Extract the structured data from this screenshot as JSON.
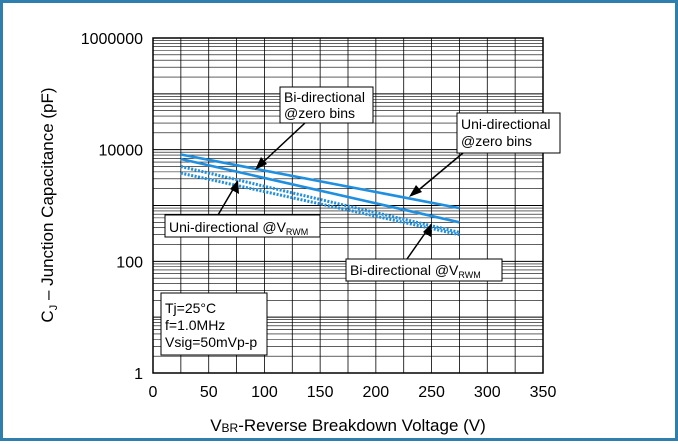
{
  "chart_data": {
    "type": "line",
    "title": "",
    "xlabel": {
      "main": "V",
      "sub": "BR",
      "rest": "-Reverse Breakdown Voltage (V)"
    },
    "ylabel": {
      "main": "C",
      "sub": "J",
      "rest": " – Junction Capacitance (pF)"
    },
    "xlim": [
      0,
      350
    ],
    "ylim": [
      1,
      1000000
    ],
    "yscale": "log",
    "grid": true,
    "x_ticks": [
      "0",
      "50",
      "100",
      "150",
      "200",
      "250",
      "300",
      "350"
    ],
    "y_ticks": [
      "1",
      "100",
      "10000",
      "1000000"
    ],
    "series": [
      {
        "name": "Uni-directional @zero bins",
        "style": "solid",
        "color": "#1f8fe0",
        "points": [
          [
            25,
            8200
          ],
          [
            275,
            900
          ]
        ]
      },
      {
        "name": "Bi-directional @zero bins",
        "style": "solid",
        "color": "#1f8fe0",
        "points": [
          [
            25,
            6800
          ],
          [
            275,
            500
          ]
        ]
      },
      {
        "name": "Uni-directional @VRWM",
        "style": "dotted",
        "color": "#1f8fe0",
        "points": [
          [
            25,
            5000
          ],
          [
            275,
            330
          ]
        ]
      },
      {
        "name": "Bi-directional @VRWM",
        "style": "dotted",
        "color": "#1f8fe0",
        "points": [
          [
            25,
            3800
          ],
          [
            275,
            300
          ]
        ]
      }
    ],
    "annotations": [
      {
        "id": "bi-zero",
        "lines": [
          "Bi-directional",
          "@zero bins"
        ]
      },
      {
        "id": "uni-zero",
        "lines": [
          "Uni-directional",
          "@zero bins"
        ]
      },
      {
        "id": "uni-vrwm",
        "text": "Uni-directional @V",
        "sub": "RWM"
      },
      {
        "id": "bi-vrwm",
        "text": "Bi-directional @V",
        "sub": "RWM"
      }
    ],
    "conditions": [
      "Tj=25°C",
      "f=1.0MHz",
      "Vsig=50mVp-p"
    ]
  }
}
